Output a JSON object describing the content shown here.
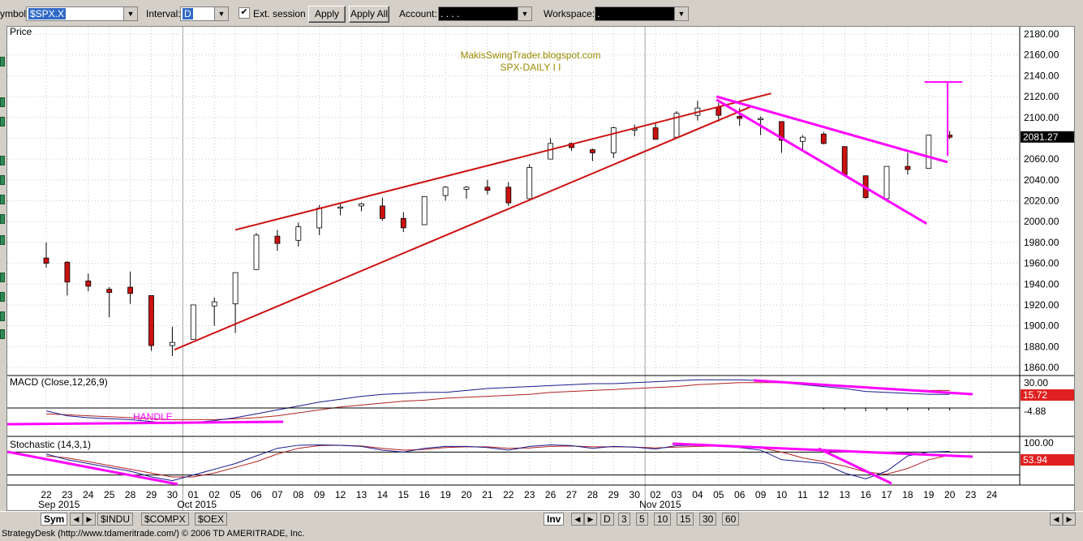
{
  "toolbar": {
    "symbol_label": "ymbol:",
    "symbol_value": "$SPX.X",
    "interval_label": "Interval:",
    "interval_value": "D",
    "ext_session_label": "Ext. session",
    "ext_session_checked": true,
    "apply_label": "Apply",
    "apply_all_label": "Apply All",
    "account_label": "Account:",
    "account_value": ".  .  .  .",
    "workspace_label": "Workspace:",
    "workspace_value": "."
  },
  "price_panel": {
    "label": "Price",
    "watermark_line1": "MakisSwingTrader.blogspot.com",
    "watermark_line2": "SPX-DAILY  I I",
    "last_price": "2081.27"
  },
  "macd_panel": {
    "label": "MACD (Close,12,26,9)",
    "handle_text": "HANDLE",
    "scale_top": "30.00",
    "value_red": "15.72",
    "value_bottom": "-4.88"
  },
  "stoch_panel": {
    "label": "Stochastic (14,3,1)",
    "scale_top": "100.00",
    "value_red": "53.94"
  },
  "colors": {
    "up_candle": "#ffffff",
    "down_candle": "#cc1111",
    "trendline_red": "#cc1111",
    "trendline_magenta": "#ff00ff",
    "watermark": "#9a8a00",
    "price_tag_bg": "#000000",
    "macd_blue": "#1a1a8c",
    "macd_red": "#b22222"
  },
  "chart_data": {
    "type": "candlestick",
    "y_ticks": [
      2180,
      2160,
      2140,
      2120,
      2100,
      2080,
      2060,
      2040,
      2020,
      2000,
      1980,
      1960,
      1940,
      1920,
      1900,
      1880,
      1860
    ],
    "ylim": [
      1855,
      2185
    ],
    "x_day_labels": [
      "22",
      "23",
      "24",
      "25",
      "28",
      "29",
      "30",
      "01",
      "02",
      "05",
      "06",
      "07",
      "08",
      "09",
      "12",
      "13",
      "14",
      "15",
      "16",
      "19",
      "20",
      "21",
      "22",
      "23",
      "26",
      "27",
      "28",
      "29",
      "30",
      "02",
      "03",
      "04",
      "05",
      "06",
      "09",
      "10",
      "11",
      "12",
      "13",
      "16",
      "17",
      "18",
      "19",
      "20",
      "23",
      "24"
    ],
    "month_labels": [
      {
        "text": "Sep 2015",
        "day_index": 0
      },
      {
        "text": "Oct 2015",
        "day_index": 7
      },
      {
        "text": "Nov 2015",
        "day_index": 29
      }
    ],
    "candles": [
      {
        "date": "2015-09-21",
        "o": 1965,
        "h": 1980,
        "l": 1956,
        "c": 1960
      },
      {
        "date": "2015-09-22",
        "o": 1961,
        "h": 1962,
        "l": 1929,
        "c": 1942
      },
      {
        "date": "2015-09-23",
        "o": 1943,
        "h": 1950,
        "l": 1933,
        "c": 1938
      },
      {
        "date": "2015-09-24",
        "o": 1935,
        "h": 1937,
        "l": 1908,
        "c": 1932
      },
      {
        "date": "2015-09-25",
        "o": 1937,
        "h": 1952,
        "l": 1921,
        "c": 1931
      },
      {
        "date": "2015-09-28",
        "o": 1929,
        "h": 1929,
        "l": 1876,
        "c": 1881
      },
      {
        "date": "2015-09-29",
        "o": 1881,
        "h": 1899,
        "l": 1871,
        "c": 1884
      },
      {
        "date": "2015-09-30",
        "o": 1887,
        "h": 1920,
        "l": 1887,
        "c": 1920
      },
      {
        "date": "2015-10-01",
        "o": 1919,
        "h": 1927,
        "l": 1900,
        "c": 1923
      },
      {
        "date": "2015-10-02",
        "o": 1921,
        "h": 1951,
        "l": 1893,
        "c": 1951
      },
      {
        "date": "2015-10-05",
        "o": 1954,
        "h": 1989,
        "l": 1954,
        "c": 1987
      },
      {
        "date": "2015-10-06",
        "o": 1986,
        "h": 1992,
        "l": 1972,
        "c": 1979
      },
      {
        "date": "2015-10-07",
        "o": 1982,
        "h": 1999,
        "l": 1976,
        "c": 1995
      },
      {
        "date": "2015-10-08",
        "o": 1994,
        "h": 2016,
        "l": 1987,
        "c": 2013
      },
      {
        "date": "2015-10-09",
        "o": 2013,
        "h": 2018,
        "l": 2006,
        "c": 2014
      },
      {
        "date": "2015-10-12",
        "o": 2015,
        "h": 2018,
        "l": 2010,
        "c": 2017
      },
      {
        "date": "2015-10-13",
        "o": 2015,
        "h": 2023,
        "l": 2001,
        "c": 2003
      },
      {
        "date": "2015-10-14",
        "o": 2003,
        "h": 2009,
        "l": 1990,
        "c": 1994
      },
      {
        "date": "2015-10-15",
        "o": 1997,
        "h": 2024,
        "l": 1997,
        "c": 2024
      },
      {
        "date": "2015-10-16",
        "o": 2025,
        "h": 2034,
        "l": 2020,
        "c": 2033
      },
      {
        "date": "2015-10-19",
        "o": 2031,
        "h": 2034,
        "l": 2022,
        "c": 2033
      },
      {
        "date": "2015-10-20",
        "o": 2033,
        "h": 2040,
        "l": 2026,
        "c": 2030
      },
      {
        "date": "2015-10-21",
        "o": 2033,
        "h": 2038,
        "l": 2015,
        "c": 2018
      },
      {
        "date": "2015-10-22",
        "o": 2022,
        "h": 2055,
        "l": 2022,
        "c": 2052
      },
      {
        "date": "2015-10-23",
        "o": 2060,
        "h": 2080,
        "l": 2060,
        "c": 2075
      },
      {
        "date": "2015-10-26",
        "o": 2075,
        "h": 2076,
        "l": 2068,
        "c": 2071
      },
      {
        "date": "2015-10-27",
        "o": 2069,
        "h": 2070,
        "l": 2058,
        "c": 2066
      },
      {
        "date": "2015-10-28",
        "o": 2066,
        "h": 2091,
        "l": 2061,
        "c": 2090
      },
      {
        "date": "2015-10-29",
        "o": 2089,
        "h": 2093,
        "l": 2082,
        "c": 2089
      },
      {
        "date": "2015-10-30",
        "o": 2090,
        "h": 2094,
        "l": 2079,
        "c": 2079
      },
      {
        "date": "2015-11-02",
        "o": 2081,
        "h": 2106,
        "l": 2081,
        "c": 2104
      },
      {
        "date": "2015-11-03",
        "o": 2102,
        "h": 2116,
        "l": 2097,
        "c": 2109
      },
      {
        "date": "2015-11-04",
        "o": 2110,
        "h": 2114,
        "l": 2096,
        "c": 2102
      },
      {
        "date": "2015-11-05",
        "o": 2101,
        "h": 2109,
        "l": 2092,
        "c": 2099
      },
      {
        "date": "2015-11-06",
        "o": 2098,
        "h": 2101,
        "l": 2083,
        "c": 2099
      },
      {
        "date": "2015-11-09",
        "o": 2096,
        "h": 2096,
        "l": 2066,
        "c": 2078
      },
      {
        "date": "2015-11-10",
        "o": 2077,
        "h": 2083,
        "l": 2069,
        "c": 2081
      },
      {
        "date": "2015-11-11",
        "o": 2084,
        "h": 2086,
        "l": 2074,
        "c": 2075
      },
      {
        "date": "2015-11-12",
        "o": 2072,
        "h": 2072,
        "l": 2045,
        "c": 2045
      },
      {
        "date": "2015-11-13",
        "o": 2044,
        "h": 2044,
        "l": 2022,
        "c": 2023
      },
      {
        "date": "2015-11-16",
        "o": 2022,
        "h": 2053,
        "l": 2019,
        "c": 2053
      },
      {
        "date": "2015-11-17",
        "o": 2053,
        "h": 2066,
        "l": 2045,
        "c": 2050
      },
      {
        "date": "2015-11-18",
        "o": 2051,
        "h": 2083,
        "l": 2051,
        "c": 2083
      },
      {
        "date": "2015-11-19",
        "o": 2083,
        "h": 2087,
        "l": 2079,
        "c": 2081
      }
    ]
  },
  "bottom_bar": {
    "sym_label": "Sym",
    "symbol_tabs": [
      "$INDU",
      "$COMPX",
      "$OEX"
    ],
    "inv_label": "Inv",
    "period_tabs": [
      "D",
      "3",
      "5",
      "10",
      "15",
      "30",
      "60"
    ]
  },
  "status_text": "StrategyDesk (http://www.tdameritrade.com/) © 2006 TD AMERITRADE, Inc."
}
